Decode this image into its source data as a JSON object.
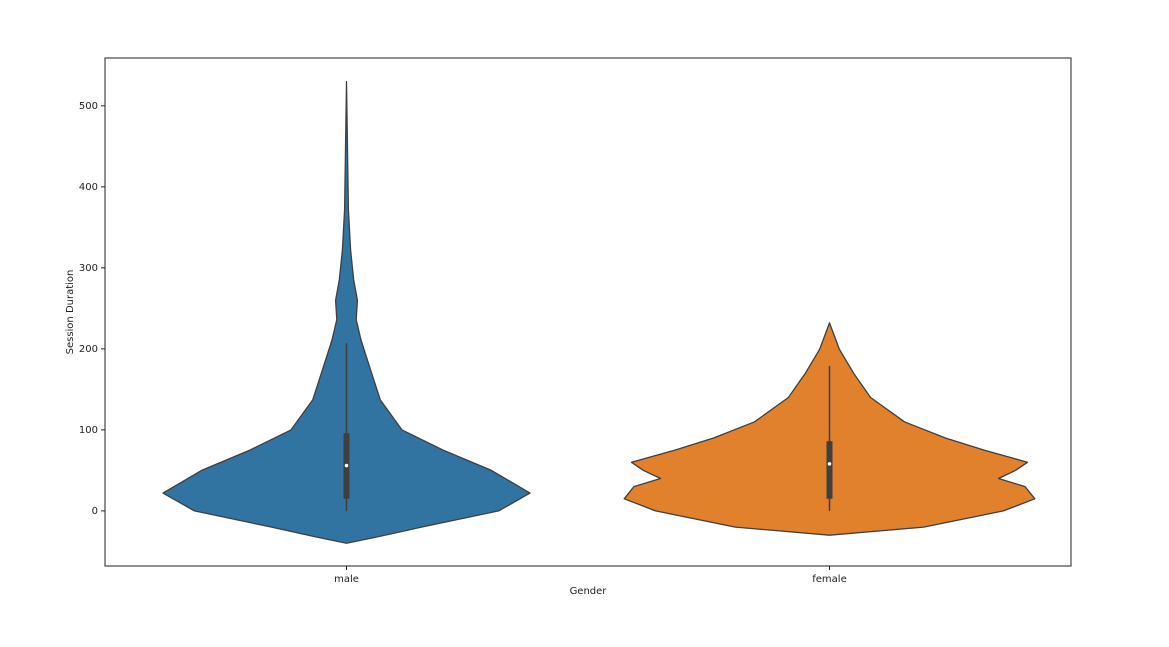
{
  "chart_data": {
    "type": "violin",
    "xlabel": "Gender",
    "ylabel": "Session Duration",
    "categories": [
      "male",
      "female"
    ],
    "ylim": [
      -68,
      559
    ],
    "yticks": [
      0,
      100,
      200,
      300,
      400,
      500
    ],
    "violins": [
      {
        "color": "#3274a1",
        "density": {
          "y": [
            -40,
            -32,
            -20,
            0,
            22,
            50,
            75,
            100,
            137,
            174,
            211,
            236,
            260,
            285,
            322,
            372,
            446,
            530
          ],
          "width": [
            0,
            0.13,
            0.31,
            0.63,
            0.76,
            0.6,
            0.4,
            0.23,
            0.14,
            0.1,
            0.06,
            0.04,
            0.045,
            0.03,
            0.017,
            0.008,
            0.004,
            0
          ]
        },
        "whisker_low": 0,
        "q1": 15,
        "median": 56,
        "q3": 96,
        "whisker_high": 207
      },
      {
        "color": "#e1812c",
        "density": {
          "y": [
            -30,
            -20,
            0,
            15,
            30,
            40,
            50,
            60,
            75,
            90,
            110,
            140,
            170,
            200,
            232
          ],
          "width": [
            0,
            0.39,
            0.72,
            0.85,
            0.81,
            0.7,
            0.77,
            0.82,
            0.64,
            0.48,
            0.31,
            0.17,
            0.1,
            0.04,
            0
          ]
        },
        "whisker_low": 0,
        "q1": 15,
        "median": 58,
        "q3": 86,
        "whisker_high": 179
      }
    ]
  }
}
